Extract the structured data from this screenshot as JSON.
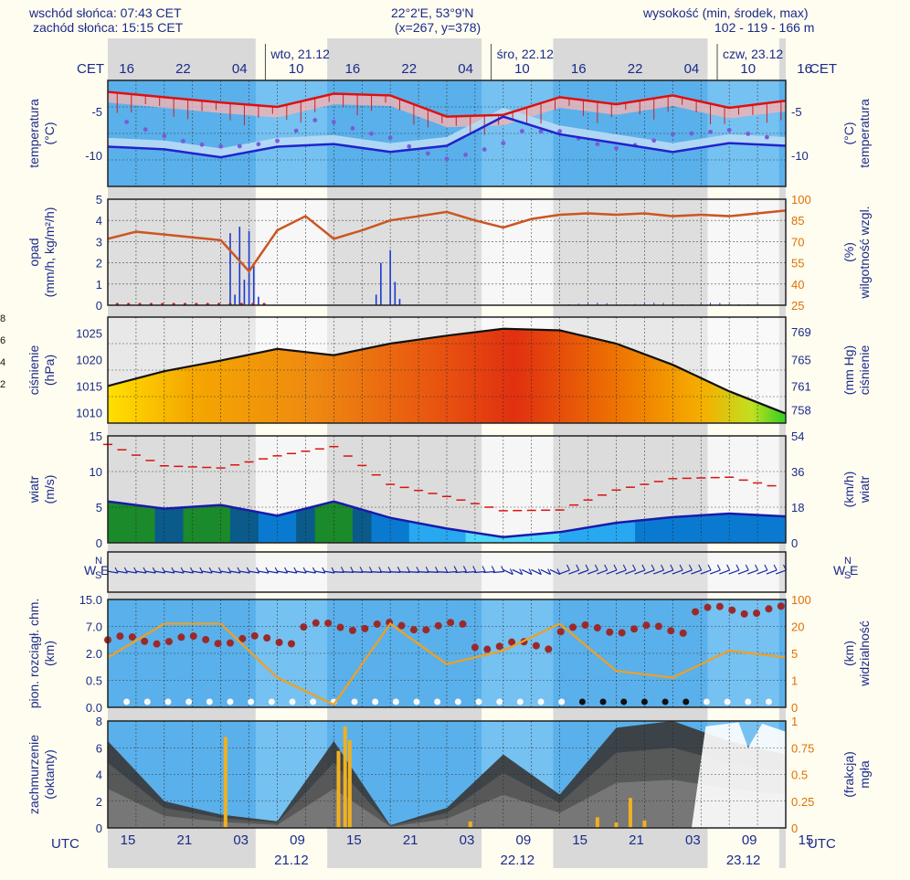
{
  "header": {
    "sunrise": "wschód słońca: 07:43 CET",
    "sunset": "zachód słońca: 15:15 CET",
    "coords": "22°2'E, 53°9'N",
    "grid": "(x=267,  y=378)",
    "elevation_label": "wysokość (min, środek, max)",
    "elevation_values": "102 - 119 - 166 m"
  },
  "top_axis": {
    "tz": "CET",
    "hours": [
      "16",
      "22",
      "04",
      "10",
      "16",
      "22",
      "04",
      "10",
      "16",
      "22",
      "04",
      "10",
      "16"
    ],
    "days": [
      "wto, 21.12",
      "śro, 22.12",
      "czw, 23.12"
    ]
  },
  "bottom_axis": {
    "tz": "UTC",
    "hours": [
      "15",
      "21",
      "03",
      "09",
      "15",
      "21",
      "03",
      "09",
      "15",
      "21",
      "03",
      "09",
      "15"
    ],
    "days": [
      "21.12",
      "22.12",
      "23.12"
    ]
  },
  "left_edge_labels": [
    "8",
    "6",
    "4",
    "2"
  ],
  "panels": {
    "temperature": {
      "left_label": [
        "temperatura",
        "(°C)"
      ],
      "right_label": [
        "(°C)",
        "temperatura"
      ]
    },
    "precip": {
      "left_label": [
        "opad",
        "(mm/h, kg/m²/h)"
      ],
      "right_label": [
        "(%)",
        "wilgotność wzgl."
      ]
    },
    "pressure": {
      "left_label": [
        "ciśnienie",
        "(hPa)"
      ],
      "right_label": [
        "(mm Hg)",
        "ciśnienie"
      ]
    },
    "wind": {
      "left_label": [
        "wiatr",
        "(m/s)"
      ],
      "right_label": [
        "(km/h)",
        "wiatr"
      ]
    },
    "direction": {
      "compass": "NWSE"
    },
    "visibility": {
      "left_label": [
        "pion. rozciągł. chm.",
        "(km)"
      ],
      "right_label": [
        "(km)",
        "widzialność"
      ]
    },
    "clouds": {
      "left_label": [
        "zachmurzenie",
        "(oktanty)"
      ],
      "right_label": [
        "(frakcja)",
        "mgła"
      ]
    }
  },
  "chart_data": [
    {
      "type": "line",
      "title": "temperatura (°C)",
      "x_hours": [
        0,
        6,
        12,
        18,
        24,
        30,
        36,
        42,
        48,
        54,
        60,
        66,
        72
      ],
      "ylim": [
        -13.5,
        -1.5
      ],
      "yticks": [
        -5,
        -10
      ],
      "series": [
        {
          "name": "temperatura max",
          "color": "#dd1111",
          "values": [
            -2.8,
            -3.4,
            -4.0,
            -4.5,
            -3.0,
            -3.2,
            -5.6,
            -5.4,
            -3.4,
            -4.2,
            -3.2,
            -4.6,
            -3.8
          ]
        },
        {
          "name": "temperatura min",
          "color": "#2222cc",
          "values": [
            -9.0,
            -9.3,
            -10.2,
            -9.0,
            -8.7,
            -9.6,
            -8.9,
            -5.6,
            -7.6,
            -8.6,
            -9.6,
            -8.6,
            -8.9
          ]
        }
      ]
    },
    {
      "type": "line",
      "title": "opad / wilgotność wzgl.",
      "x_hours": [
        0,
        3,
        6,
        9,
        12,
        15,
        18,
        21,
        24,
        27,
        30,
        33,
        36,
        39,
        42,
        45,
        48,
        51,
        54,
        57,
        60,
        63,
        66,
        69,
        72
      ],
      "ylim": [
        0,
        5
      ],
      "yticks": [
        0,
        1,
        2,
        3,
        4,
        5
      ],
      "y2lim": [
        25,
        100
      ],
      "y2ticks": [
        25,
        40,
        55,
        70,
        85,
        100
      ],
      "series": [
        {
          "name": "wilgotność",
          "color": "#cc5522",
          "values": [
            72,
            77,
            75,
            73,
            71,
            49,
            78,
            88,
            72,
            78,
            85,
            88,
            91,
            85,
            80,
            86,
            89,
            90,
            89,
            90,
            88,
            89,
            88,
            90,
            92
          ]
        }
      ]
    },
    {
      "type": "area",
      "title": "ciśnienie (hPa)",
      "x_hours": [
        0,
        6,
        12,
        18,
        24,
        30,
        36,
        42,
        48,
        54,
        60,
        66,
        72
      ],
      "ylim": [
        1008,
        1028
      ],
      "yticks": [
        1010,
        1015,
        1020,
        1025
      ],
      "y2ticks": [
        758,
        761,
        765,
        769
      ],
      "values": [
        1015.0,
        1017.8,
        1019.8,
        1022.0,
        1020.8,
        1023.0,
        1024.5,
        1025.8,
        1025.5,
        1023.0,
        1019.0,
        1014.0,
        1009.8
      ]
    },
    {
      "type": "line",
      "title": "wiatr (m/s)",
      "x_hours": [
        0,
        6,
        12,
        18,
        24,
        30,
        36,
        42,
        48,
        54,
        60,
        66,
        72
      ],
      "ylim": [
        0,
        15
      ],
      "yticks": [
        0,
        5,
        10,
        15
      ],
      "y2ticks": [
        0,
        18,
        36,
        54
      ],
      "series": [
        {
          "name": "wiatr średni",
          "color": "#1a1aaa",
          "values": [
            5.8,
            4.8,
            5.3,
            3.8,
            5.8,
            3.5,
            2.0,
            0.8,
            1.5,
            2.8,
            3.6,
            4.1,
            3.7
          ]
        },
        {
          "name": "porywy",
          "color": "#dd1111",
          "values": [
            13.8,
            10.8,
            10.5,
            12.2,
            13.5,
            8.2,
            6.5,
            4.5,
            4.6,
            7.4,
            9.0,
            9.2,
            7.6
          ]
        }
      ]
    },
    {
      "type": "scatter",
      "title": "pion. rozciągł. chm. / widzialność (km)",
      "yticks": [
        "0.0",
        "0.5",
        "2.0",
        "7.0",
        "15.0"
      ],
      "y2ticks": [
        "0",
        "1",
        "5",
        "20",
        "100"
      ],
      "x_hours": [
        0,
        6,
        12,
        18,
        24,
        30,
        36,
        42,
        48,
        54,
        60,
        66,
        72
      ],
      "visibility_values": [
        4,
        20,
        20,
        1,
        0,
        20,
        3,
        5,
        20,
        2,
        1,
        5,
        4
      ]
    },
    {
      "type": "area",
      "title": "zachmurzenie (oktanty) / mgła (frakcja)",
      "x_hours": [
        0,
        6,
        12,
        18,
        24,
        30,
        36,
        42,
        48,
        54,
        60,
        66,
        72
      ],
      "ylim": [
        0,
        8
      ],
      "yticks": [
        0,
        2,
        4,
        6,
        8
      ],
      "y2ticks": [
        "0",
        "0.25",
        "0.5",
        "0.75",
        "1"
      ],
      "series": [
        {
          "name": "zachmurzenie",
          "color": "#555555",
          "values": [
            6.5,
            2.0,
            1.0,
            0.5,
            6.5,
            0.2,
            1.5,
            5.5,
            2.5,
            7.5,
            8.0,
            6.5,
            5.5
          ]
        }
      ]
    }
  ]
}
